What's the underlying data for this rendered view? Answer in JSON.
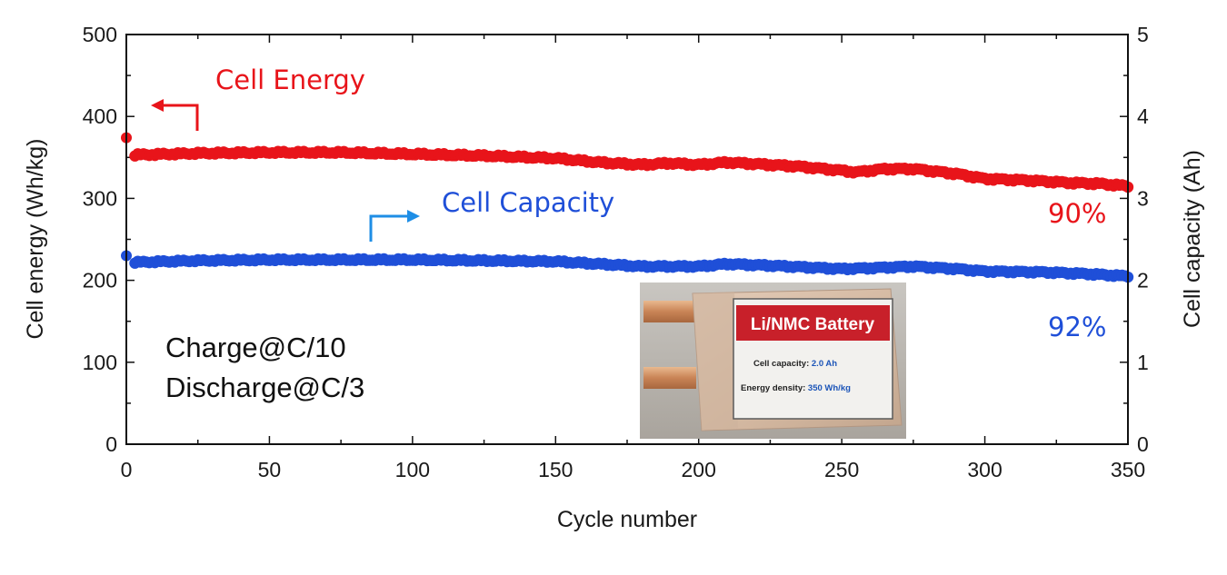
{
  "chart_data": {
    "type": "scatter",
    "title": "",
    "xlabel": "Cycle number",
    "ylabel_left": "Cell energy (Wh/kg)",
    "ylabel_right": "Cell capacity (Ah)",
    "xlim": [
      0,
      350
    ],
    "ylim_left": [
      0,
      500
    ],
    "ylim_right": [
      0,
      5
    ],
    "x_ticks": [
      0,
      50,
      100,
      150,
      200,
      250,
      300,
      350
    ],
    "y_left_ticks": [
      0,
      100,
      200,
      300,
      400,
      500
    ],
    "y_right_ticks": [
      0,
      1,
      2,
      3,
      4,
      5
    ],
    "series": [
      {
        "name": "Cell Energy",
        "axis": "left",
        "color": "#e8141a",
        "first_point": [
          0,
          374
        ],
        "points": [
          [
            3,
            353
          ],
          [
            25,
            355
          ],
          [
            50,
            356
          ],
          [
            75,
            356
          ],
          [
            100,
            354
          ],
          [
            125,
            352
          ],
          [
            150,
            349
          ],
          [
            165,
            344
          ],
          [
            180,
            341
          ],
          [
            190,
            343
          ],
          [
            200,
            341
          ],
          [
            210,
            344
          ],
          [
            220,
            342
          ],
          [
            235,
            339
          ],
          [
            250,
            334
          ],
          [
            255,
            332
          ],
          [
            265,
            336
          ],
          [
            275,
            336
          ],
          [
            290,
            330
          ],
          [
            300,
            324
          ],
          [
            315,
            322
          ],
          [
            330,
            319
          ],
          [
            340,
            318
          ],
          [
            350,
            315
          ]
        ]
      },
      {
        "name": "Cell Capacity",
        "axis": "right",
        "color": "#1f4fd8",
        "first_point": [
          0,
          2.3
        ],
        "points": [
          [
            3,
            2.22
          ],
          [
            25,
            2.24
          ],
          [
            50,
            2.25
          ],
          [
            75,
            2.25
          ],
          [
            100,
            2.25
          ],
          [
            125,
            2.24
          ],
          [
            150,
            2.23
          ],
          [
            165,
            2.2
          ],
          [
            180,
            2.17
          ],
          [
            200,
            2.17
          ],
          [
            210,
            2.2
          ],
          [
            225,
            2.18
          ],
          [
            250,
            2.14
          ],
          [
            260,
            2.15
          ],
          [
            275,
            2.17
          ],
          [
            290,
            2.14
          ],
          [
            300,
            2.11
          ],
          [
            320,
            2.1
          ],
          [
            335,
            2.08
          ],
          [
            350,
            2.05
          ]
        ]
      }
    ],
    "annotations": {
      "energy_label": "Cell Energy",
      "capacity_label": "Cell Capacity",
      "energy_retention": "90%",
      "capacity_retention": "92%",
      "charge_condition": "Charge@C/10",
      "discharge_condition": "Discharge@C/3"
    },
    "inset": {
      "title": "Li/NMC Battery",
      "capacity_key": "Cell capacity: ",
      "capacity_value": "2.0 Ah",
      "density_key": "Energy density: ",
      "density_value": "350 Wh/kg"
    }
  },
  "colors": {
    "energy": "#e8141a",
    "capacity": "#1f4fd8",
    "label_red": "#c8202a",
    "label_blue": "#1c55b8"
  }
}
